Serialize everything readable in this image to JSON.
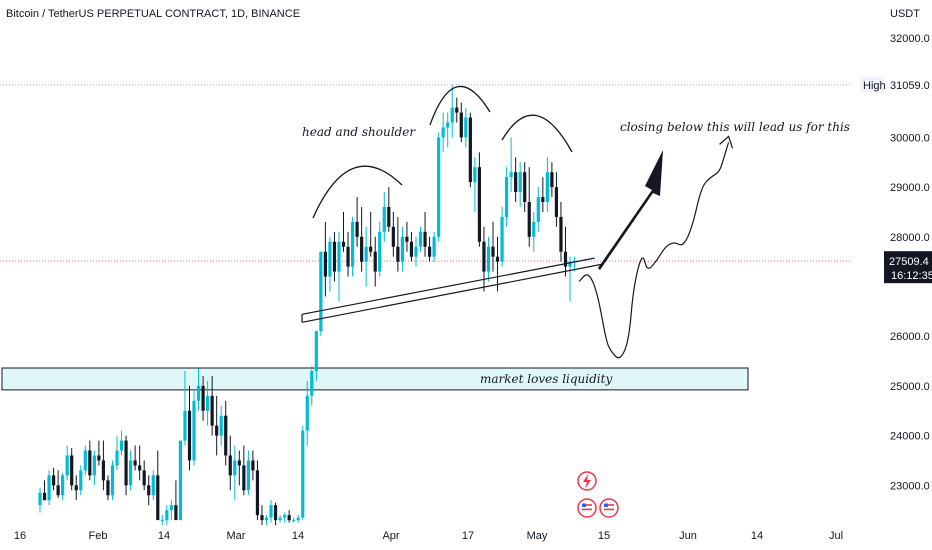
{
  "header": {
    "symbol_title": "Bitcoin / TetherUS PERPETUAL CONTRACT, 1D, BINANCE"
  },
  "price_axis": {
    "currency": "USDT",
    "high_label": "High",
    "high_value": "31059.0",
    "current_price": "27509.4",
    "countdown": "16:12:35"
  },
  "annotations": {
    "head_and_shoulder": "head and shoulder",
    "closing_below": "closing below this will lead us for this",
    "liquidity": "market loves liquidity"
  },
  "colors": {
    "bull": "#26a69a",
    "bull_bright": "#00bcd4",
    "bear": "#131722",
    "liquidity_zone_fill": "#e0f7fa",
    "high_line": "#b2b5be",
    "price_line": "#e57373",
    "flag_red": "#f23645"
  },
  "chart_data": {
    "type": "candlestick",
    "title": "Bitcoin / TetherUS PERPETUAL CONTRACT, 1D, BINANCE",
    "ylim": [
      22300,
      32500
    ],
    "y_ticks": [
      "32000.0",
      "30000.0",
      "29000.0",
      "28000.0",
      "26000.0",
      "25000.0",
      "24000.0",
      "23000.0"
    ],
    "x_ticks": [
      "16",
      "Feb",
      "14",
      "Mar",
      "14",
      "Apr",
      "17",
      "May",
      "15",
      "Jun",
      "14",
      "Jul"
    ],
    "levels": {
      "high": 31059.0,
      "current": 27509.4
    },
    "liquidity_zone": [
      24920,
      25360
    ],
    "neckline": [
      {
        "t": 0,
        "y": 26320
      },
      {
        "t": 118,
        "y": 27450
      }
    ],
    "candles": [
      [
        0,
        22600,
        22950,
        22450,
        22850
      ],
      [
        1,
        22850,
        23100,
        22700,
        22700
      ],
      [
        2,
        22700,
        23300,
        22600,
        23200
      ],
      [
        3,
        23200,
        23350,
        22900,
        23000
      ],
      [
        4,
        23000,
        23300,
        22750,
        22800
      ],
      [
        5,
        22800,
        23250,
        22700,
        23200
      ],
      [
        6,
        23200,
        23800,
        23100,
        23600
      ],
      [
        7,
        23600,
        23750,
        22900,
        23000
      ],
      [
        8,
        23000,
        23200,
        22700,
        22900
      ],
      [
        9,
        22900,
        23400,
        22800,
        23300
      ],
      [
        10,
        23300,
        23800,
        23200,
        23700
      ],
      [
        11,
        23700,
        23900,
        23100,
        23200
      ],
      [
        12,
        23200,
        23700,
        23000,
        23600
      ],
      [
        13,
        23600,
        23900,
        23400,
        23500
      ],
      [
        14,
        23500,
        23900,
        22900,
        23100
      ],
      [
        15,
        23100,
        23200,
        22700,
        22800
      ],
      [
        16,
        22800,
        23500,
        22700,
        23400
      ],
      [
        17,
        23400,
        24000,
        23300,
        23700
      ],
      [
        18,
        23700,
        24100,
        23600,
        23900
      ],
      [
        19,
        23900,
        24000,
        22800,
        23000
      ],
      [
        20,
        23000,
        23700,
        22900,
        23500
      ],
      [
        21,
        23500,
        23800,
        23300,
        23400
      ],
      [
        22,
        23400,
        23800,
        23100,
        23300
      ],
      [
        23,
        23300,
        23500,
        22900,
        23000
      ],
      [
        24,
        23000,
        23200,
        22600,
        22800
      ],
      [
        25,
        22800,
        23300,
        22700,
        23200
      ],
      [
        26,
        23200,
        23700,
        22300,
        22300
      ],
      [
        27,
        22300,
        22400,
        22200,
        22300
      ],
      [
        28,
        22300,
        22600,
        22200,
        22500
      ],
      [
        29,
        22500,
        22700,
        22300,
        22600
      ],
      [
        30,
        22600,
        23100,
        22300,
        22300
      ],
      [
        31,
        22300,
        23900,
        22300,
        23900
      ],
      [
        32,
        23900,
        25300,
        23800,
        24500
      ],
      [
        33,
        24500,
        25000,
        23300,
        23500
      ],
      [
        34,
        23500,
        24900,
        23400,
        24700
      ],
      [
        35,
        24700,
        25350,
        24500,
        25000
      ],
      [
        36,
        25000,
        25200,
        24300,
        24500
      ],
      [
        37,
        24500,
        25100,
        24200,
        24800
      ],
      [
        38,
        24800,
        25200,
        24000,
        24200
      ],
      [
        39,
        24200,
        24800,
        23600,
        24000
      ],
      [
        40,
        24000,
        24600,
        23800,
        24400
      ],
      [
        41,
        24400,
        24700,
        23400,
        23600
      ],
      [
        42,
        23600,
        24000,
        22900,
        23200
      ],
      [
        43,
        23200,
        23800,
        22700,
        23500
      ],
      [
        44,
        23500,
        23700,
        23000,
        23400
      ],
      [
        45,
        23400,
        23800,
        22800,
        22900
      ],
      [
        46,
        22900,
        23700,
        22800,
        23500
      ],
      [
        47,
        23500,
        23700,
        23100,
        23300
      ],
      [
        48,
        23300,
        23500,
        22300,
        22400
      ],
      [
        49,
        22400,
        22600,
        22200,
        22300
      ],
      [
        50,
        22300,
        22400,
        22200,
        22350
      ],
      [
        51,
        22350,
        22700,
        22250,
        22600
      ],
      [
        52,
        22600,
        22650,
        22200,
        22300
      ],
      [
        53,
        22300,
        22400,
        22250,
        22350
      ],
      [
        54,
        22350,
        22450,
        22250,
        22400
      ],
      [
        55,
        22400,
        22500,
        22250,
        22300
      ],
      [
        56,
        22300,
        22350,
        22250,
        22300
      ],
      [
        57,
        22300,
        22400,
        22250,
        22350
      ],
      [
        58,
        22350,
        24200,
        22300,
        24100
      ],
      [
        59,
        24100,
        25100,
        23800,
        24800
      ],
      [
        60,
        24800,
        25400,
        24600,
        25300
      ],
      [
        61,
        25300,
        26100,
        25100,
        26100
      ],
      [
        62,
        26100,
        27700,
        26000,
        27700
      ],
      [
        63,
        27700,
        28300,
        26800,
        27200
      ],
      [
        64,
        27200,
        28000,
        26900,
        27900
      ],
      [
        65,
        27900,
        28100,
        27100,
        27300
      ],
      [
        66,
        27300,
        28100,
        26700,
        27900
      ],
      [
        67,
        27900,
        28500,
        27700,
        27800
      ],
      [
        68,
        27800,
        28100,
        27200,
        27400
      ],
      [
        69,
        27400,
        28400,
        27200,
        28300
      ],
      [
        70,
        28300,
        28800,
        27800,
        28000
      ],
      [
        71,
        28000,
        28600,
        27300,
        27500
      ],
      [
        72,
        27500,
        28200,
        27000,
        27800
      ],
      [
        73,
        27800,
        28500,
        27600,
        27700
      ],
      [
        74,
        27700,
        28000,
        27000,
        27300
      ],
      [
        75,
        27300,
        28300,
        27200,
        28100
      ],
      [
        76,
        28100,
        28900,
        27900,
        28600
      ],
      [
        77,
        28600,
        29000,
        28100,
        28200
      ],
      [
        78,
        28200,
        28500,
        27600,
        27800
      ],
      [
        79,
        27800,
        28400,
        27300,
        27500
      ],
      [
        80,
        27500,
        28200,
        27300,
        28000
      ],
      [
        81,
        28000,
        28300,
        27700,
        27900
      ],
      [
        82,
        27900,
        28100,
        27500,
        27600
      ],
      [
        83,
        27600,
        28000,
        27400,
        27800
      ],
      [
        84,
        27800,
        28200,
        27700,
        28100
      ],
      [
        85,
        28100,
        28500,
        27600,
        27800
      ],
      [
        86,
        27800,
        28000,
        27500,
        27600
      ],
      [
        87,
        27600,
        28100,
        27500,
        28000
      ],
      [
        88,
        28000,
        30100,
        27900,
        30000
      ],
      [
        89,
        30000,
        30500,
        29700,
        30200
      ],
      [
        90,
        30200,
        30500,
        29800,
        30300
      ],
      [
        91,
        30300,
        31059,
        30000,
        30600
      ],
      [
        92,
        30600,
        30800,
        30300,
        30500
      ],
      [
        93,
        30500,
        30700,
        29900,
        30000
      ],
      [
        94,
        30000,
        30600,
        29800,
        30400
      ],
      [
        95,
        30400,
        30500,
        29000,
        29100
      ],
      [
        96,
        29100,
        29600,
        28500,
        29400
      ],
      [
        97,
        29400,
        29700,
        27800,
        27900
      ],
      [
        98,
        27900,
        28200,
        26900,
        27300
      ],
      [
        99,
        27300,
        28000,
        27100,
        27800
      ],
      [
        100,
        27800,
        28300,
        27300,
        27600
      ],
      [
        101,
        27600,
        28000,
        26900,
        27500
      ],
      [
        102,
        27500,
        28600,
        27400,
        28400
      ],
      [
        103,
        28400,
        29400,
        28200,
        29200
      ],
      [
        104,
        29200,
        30000,
        28900,
        29300
      ],
      [
        105,
        29300,
        29600,
        28700,
        28900
      ],
      [
        106,
        28900,
        29500,
        28600,
        29300
      ],
      [
        107,
        29300,
        29500,
        28500,
        28700
      ],
      [
        108,
        28700,
        29400,
        27800,
        28000
      ],
      [
        109,
        28000,
        28500,
        27700,
        28300
      ],
      [
        110,
        28300,
        29000,
        28100,
        28800
      ],
      [
        111,
        28800,
        29200,
        28500,
        28700
      ],
      [
        112,
        28700,
        29600,
        28500,
        29300
      ],
      [
        113,
        29300,
        29500,
        28800,
        29000
      ],
      [
        114,
        29000,
        29300,
        28200,
        28400
      ],
      [
        115,
        28400,
        28700,
        27500,
        27700
      ],
      [
        116,
        27700,
        28200,
        27200,
        27400
      ],
      [
        117,
        27400,
        27600,
        26700,
        27500
      ],
      [
        118,
        27500,
        27600,
        27300,
        27509
      ]
    ],
    "projection_path": [
      [
        119,
        27100
      ],
      [
        121,
        27300
      ],
      [
        123,
        26900
      ],
      [
        125,
        25900
      ],
      [
        126,
        25700
      ],
      [
        128,
        25500
      ],
      [
        130,
        25900
      ],
      [
        131,
        27000
      ],
      [
        133,
        27700
      ],
      [
        134,
        27300
      ],
      [
        136,
        27500
      ],
      [
        138,
        27800
      ],
      [
        140,
        27900
      ],
      [
        142,
        27800
      ],
      [
        144,
        28200
      ],
      [
        146,
        29000
      ],
      [
        148,
        29200
      ],
      [
        150,
        29300
      ],
      [
        151,
        29600
      ],
      [
        152,
        29900
      ]
    ]
  }
}
